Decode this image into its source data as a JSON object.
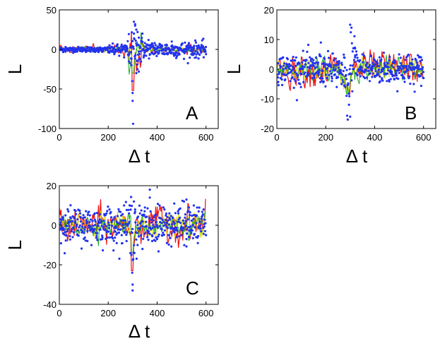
{
  "colors": {
    "points": "#2233ee",
    "line_red": "#ee1111",
    "line_yellow": "#dddd00",
    "line_green": "#22aa22",
    "axis": "#000000"
  },
  "chart_data": [
    {
      "type": "scatter",
      "panel": "A",
      "xlabel": "Δ t",
      "ylabel": "L",
      "xlim": [
        0,
        650
      ],
      "ylim": [
        -100,
        50
      ],
      "xticks": [
        "0",
        "200",
        "400",
        "600"
      ],
      "yticks": [
        "50",
        "0",
        "-50",
        "-100"
      ],
      "xtick_values": [
        0,
        200,
        400,
        600
      ],
      "ytick_values": [
        50,
        0,
        -50,
        -100
      ],
      "series": [
        {
          "name": "points",
          "style": "dots",
          "x": [
            5,
            15,
            25,
            35,
            45,
            55,
            65,
            75,
            85,
            95,
            105,
            115,
            125,
            135,
            145,
            155,
            165,
            175,
            185,
            195,
            205,
            215,
            225,
            235,
            245,
            255,
            265,
            275,
            285,
            295,
            298,
            300,
            302,
            305,
            310,
            315,
            320,
            325,
            330,
            335,
            340,
            345,
            350,
            355,
            360,
            365,
            370,
            375,
            380,
            390,
            400,
            410,
            420,
            430,
            440,
            450,
            460,
            470,
            480,
            490,
            500,
            510,
            520,
            530,
            540,
            550,
            560,
            570,
            580,
            590,
            600,
            300,
            305,
            310,
            315,
            320,
            325
          ],
          "y": [
            1,
            -2,
            3,
            0,
            -1,
            2,
            -3,
            1,
            2,
            -1,
            0,
            3,
            -2,
            1,
            -1,
            2,
            0,
            -3,
            1,
            2,
            -4,
            3,
            -6,
            5,
            -8,
            6,
            -10,
            4,
            -15,
            -20,
            -40,
            -55,
            -94,
            20,
            30,
            25,
            -25,
            15,
            -12,
            10,
            20,
            -10,
            8,
            -8,
            6,
            12,
            -6,
            5,
            -5,
            8,
            -3,
            7,
            4,
            -6,
            5,
            -4,
            10,
            -8,
            3,
            -5,
            6,
            -12,
            4,
            8,
            -6,
            3,
            -10,
            5,
            -4,
            2,
            -6,
            -65,
            35,
            32,
            -30,
            22,
            -28
          ]
        },
        {
          "name": "moving-average",
          "style": "line"
        }
      ]
    },
    {
      "type": "scatter",
      "panel": "B",
      "xlabel": "Δ t",
      "ylabel": "L",
      "xlim": [
        0,
        650
      ],
      "ylim": [
        -20,
        20
      ],
      "xticks": [
        "0",
        "200",
        "400",
        "600"
      ],
      "yticks": [
        "20",
        "10",
        "0",
        "-10",
        "-20"
      ],
      "xtick_values": [
        0,
        200,
        400,
        600
      ],
      "ytick_values": [
        20,
        10,
        0,
        -10,
        -20
      ],
      "series": [
        {
          "name": "points",
          "style": "dots",
          "x": [
            5,
            15,
            25,
            35,
            45,
            55,
            65,
            75,
            85,
            95,
            105,
            115,
            125,
            135,
            145,
            155,
            165,
            175,
            185,
            195,
            205,
            215,
            225,
            235,
            245,
            255,
            265,
            275,
            285,
            295,
            300,
            305,
            310,
            320,
            330,
            340,
            350,
            360,
            370,
            380,
            390,
            400,
            410,
            420,
            430,
            440,
            450,
            460,
            470,
            480,
            490,
            500,
            510,
            520,
            530,
            540,
            550,
            560,
            570,
            580,
            590,
            600,
            180,
            290,
            300,
            320
          ],
          "y": [
            2,
            -3,
            4,
            -2,
            1,
            -4,
            3,
            -1,
            2,
            -5,
            1,
            3,
            -2,
            4,
            -3,
            2,
            -1,
            5,
            -4,
            2,
            -3,
            1,
            -4,
            3,
            -6,
            2,
            -5,
            4,
            -9,
            -12,
            -16,
            14,
            6,
            4,
            -2,
            3,
            5,
            -3,
            2,
            -4,
            1,
            3,
            -2,
            4,
            -3,
            2,
            -4,
            3,
            -1,
            2,
            -3,
            5,
            -2,
            1,
            4,
            -3,
            2,
            -5,
            3,
            -2,
            4,
            -3,
            9,
            -17,
            15,
            7
          ]
        },
        {
          "name": "moving-average",
          "style": "line"
        }
      ]
    },
    {
      "type": "scatter",
      "panel": "C",
      "xlabel": "Δ t",
      "ylabel": "L",
      "xlim": [
        0,
        650
      ],
      "ylim": [
        -40,
        20
      ],
      "xticks": [
        "0",
        "200",
        "400",
        "600"
      ],
      "yticks": [
        "20",
        "0",
        "-20",
        "-40"
      ],
      "xtick_values": [
        0,
        200,
        400,
        600
      ],
      "ytick_values": [
        20,
        0,
        -20,
        -40
      ],
      "series": [
        {
          "name": "points",
          "style": "dots",
          "x": [
            5,
            15,
            25,
            35,
            45,
            55,
            65,
            75,
            85,
            95,
            105,
            115,
            125,
            135,
            145,
            155,
            165,
            175,
            185,
            195,
            205,
            215,
            225,
            235,
            245,
            255,
            265,
            275,
            285,
            295,
            298,
            300,
            305,
            310,
            320,
            330,
            340,
            350,
            360,
            370,
            380,
            390,
            400,
            410,
            420,
            430,
            440,
            450,
            460,
            470,
            480,
            490,
            500,
            510,
            520,
            530,
            540,
            550,
            560,
            570,
            580,
            590,
            600,
            300,
            370,
            520
          ],
          "y": [
            3,
            -4,
            5,
            -2,
            4,
            -6,
            2,
            -5,
            6,
            -3,
            4,
            -8,
            5,
            -2,
            6,
            -4,
            3,
            -7,
            5,
            -3,
            8,
            -6,
            4,
            -9,
            7,
            -5,
            10,
            -8,
            6,
            -15,
            -24,
            -30,
            12,
            8,
            -10,
            6,
            -12,
            9,
            -6,
            14,
            -8,
            5,
            -7,
            10,
            -5,
            8,
            -9,
            6,
            -4,
            11,
            -6,
            8,
            -5,
            12,
            -7,
            9,
            -4,
            10,
            -6,
            7,
            -3,
            8,
            -5,
            -33,
            18,
            13
          ]
        },
        {
          "name": "moving-average",
          "style": "line"
        }
      ]
    }
  ]
}
